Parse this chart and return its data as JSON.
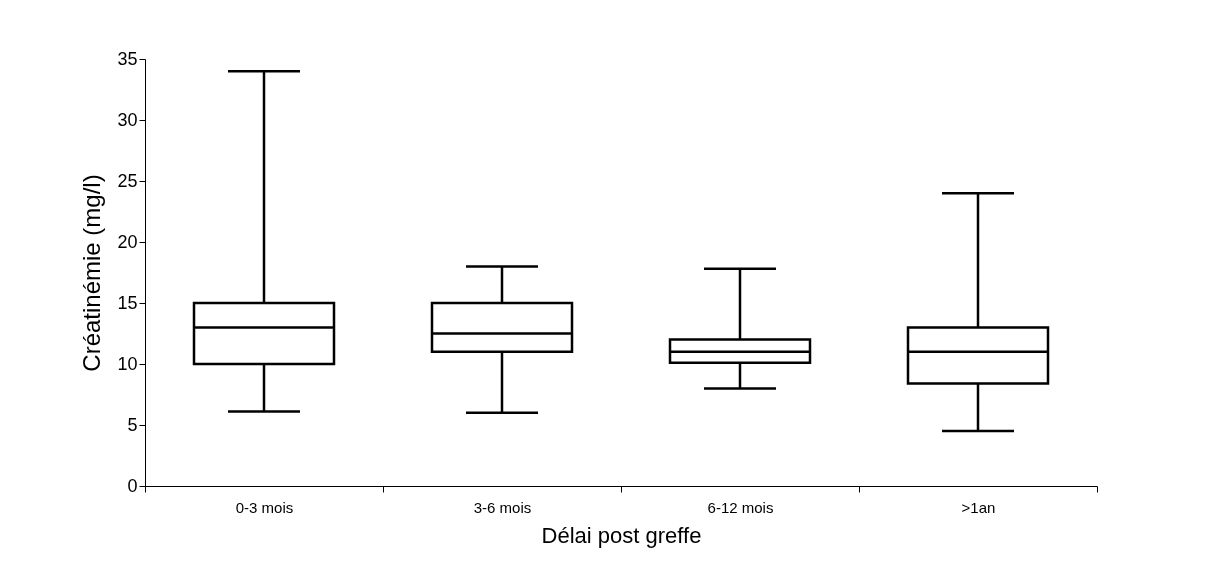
{
  "chart_data": {
    "type": "box",
    "xlabel": "Délai post greffe",
    "ylabel": "Créatinémie  (mg/l)",
    "categories": [
      "0-3 mois",
      "3-6 mois",
      "6-12 mois",
      ">1an"
    ],
    "boxes": [
      {
        "low": 6.1,
        "q1": 10,
        "median": 13,
        "q3": 15,
        "high": 34
      },
      {
        "low": 6,
        "q1": 11,
        "median": 12.5,
        "q3": 15,
        "high": 18
      },
      {
        "low": 8,
        "q1": 10.1,
        "median": 11,
        "q3": 12,
        "high": 17.8
      },
      {
        "low": 4.5,
        "q1": 8.4,
        "median": 11,
        "q3": 13,
        "high": 24
      }
    ],
    "ylim": [
      0,
      35
    ],
    "yticks": [
      0,
      5,
      10,
      15,
      20,
      25,
      30,
      35
    ],
    "grid": false
  }
}
